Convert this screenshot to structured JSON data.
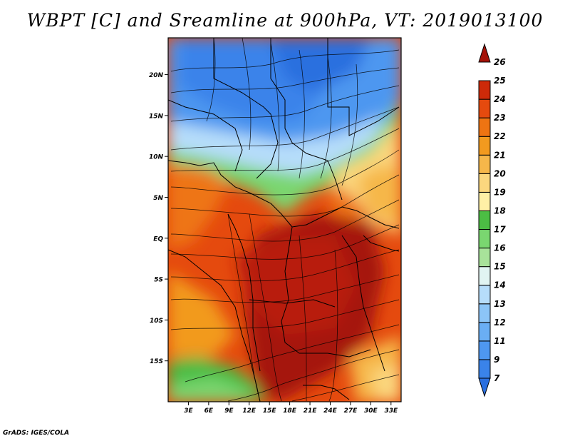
{
  "title": "WBPT [C] and Sreamline at 900hPa, VT: 2019013100",
  "footer": "GrADS: IGES/COLA",
  "map": {
    "lat_labels": [
      "20N",
      "15N",
      "10N",
      "5N",
      "EQ",
      "5S",
      "10S",
      "15S"
    ],
    "lon_labels": [
      "3E",
      "6E",
      "9E",
      "12E",
      "15E",
      "18E",
      "21E",
      "24E",
      "27E",
      "30E",
      "33E"
    ],
    "lat_values": [
      20,
      15,
      10,
      5,
      0,
      -5,
      -10,
      -15
    ],
    "lon_values": [
      3,
      6,
      9,
      12,
      15,
      18,
      21,
      24,
      27,
      30,
      33
    ],
    "lat_range": [
      -20,
      24.5
    ],
    "lon_range": [
      0,
      34.5
    ],
    "variable": "WBPT",
    "units": "C",
    "level": "900hPa",
    "valid_time": "2019013100"
  },
  "colorbar": {
    "labels": [
      "7",
      "9",
      "11",
      "12",
      "13",
      "14",
      "15",
      "16",
      "17",
      "18",
      "19",
      "20",
      "21",
      "22",
      "23",
      "24",
      "25",
      "26"
    ],
    "colors": [
      "#2a6fdf",
      "#3a83ea",
      "#4e97f0",
      "#6aaef4",
      "#8cc5f7",
      "#b6ddfa",
      "#e1f4f2",
      "#a8e29a",
      "#7ad670",
      "#4cbd44",
      "#fff0a6",
      "#fbd77e",
      "#f6b74a",
      "#f29a1f",
      "#ee7412",
      "#e54a0e",
      "#cd2a09",
      "#a51207"
    ]
  }
}
